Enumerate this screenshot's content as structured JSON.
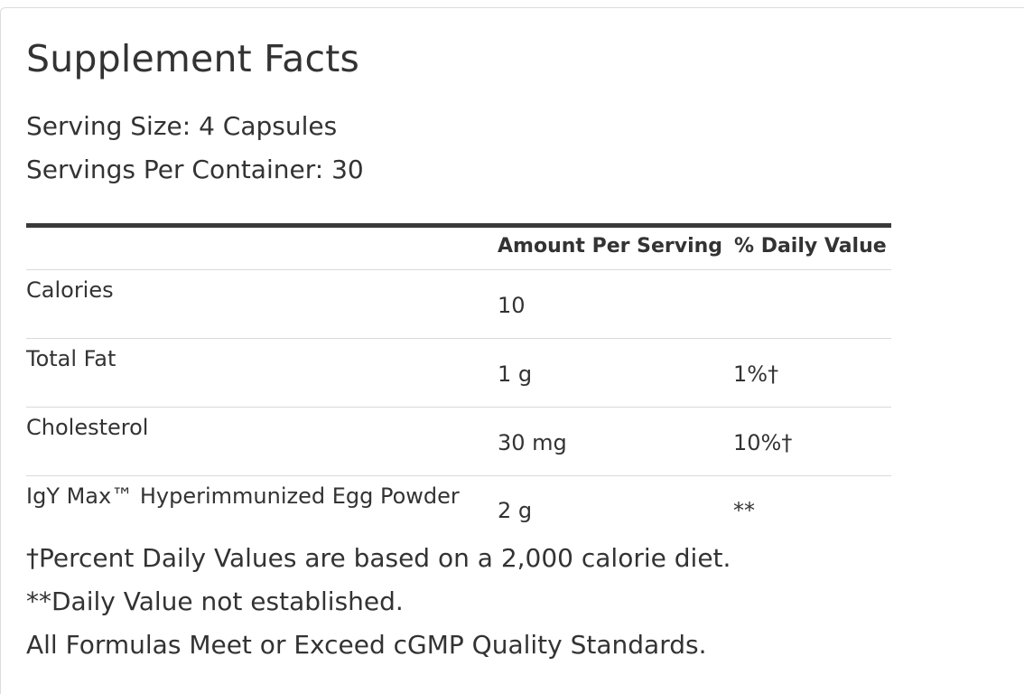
{
  "panel": {
    "title": "Supplement Facts",
    "serving_size": "Serving Size: 4 Capsules",
    "servings_per_container": "Servings Per Container: 30"
  },
  "table": {
    "headers": {
      "name": "",
      "amount": "Amount Per Serving",
      "daily_value": "% Daily Value"
    },
    "rows": [
      {
        "name": "Calories",
        "amount": "10",
        "daily_value": ""
      },
      {
        "name": "Total Fat",
        "amount": "1 g",
        "daily_value": "1%†"
      },
      {
        "name": "Cholesterol",
        "amount": "30 mg",
        "daily_value": "10%†"
      },
      {
        "name": "IgY Max™ Hyperimmunized Egg Powder",
        "amount": "2 g",
        "daily_value": "**"
      }
    ]
  },
  "footnotes": [
    "†Percent Daily Values are based on a 2,000 calorie diet.",
    "**Daily Value not established.",
    "All Formulas Meet or Exceed cGMP Quality Standards."
  ]
}
